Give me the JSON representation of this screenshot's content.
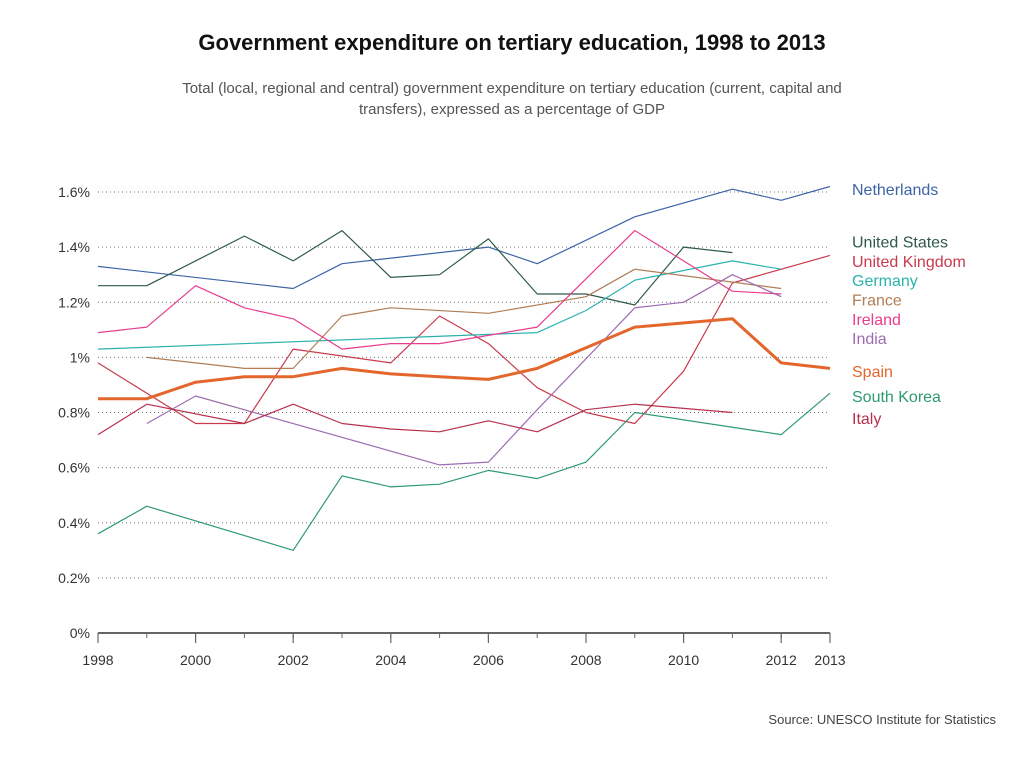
{
  "title": "Government expenditure on tertiary education, 1998 to 2013",
  "subtitle": "Total (local, regional and central) government expenditure on tertiary education (current, capital and transfers), expressed as a percentage of GDP",
  "source": "Source: UNESCO Institute for Statistics",
  "chart_data": {
    "type": "line",
    "title": "Government expenditure on tertiary education, 1998 to 2013",
    "xlabel": "",
    "ylabel": "",
    "xlim": [
      1998,
      2013
    ],
    "ylim": [
      0,
      1.6
    ],
    "x_ticks": [
      {
        "value": 1998,
        "label": "1998"
      },
      {
        "value": 2000,
        "label": "2000"
      },
      {
        "value": 2002,
        "label": "2002"
      },
      {
        "value": 2004,
        "label": "2004"
      },
      {
        "value": 2006,
        "label": "2006"
      },
      {
        "value": 2008,
        "label": "2008"
      },
      {
        "value": 2010,
        "label": "2010"
      },
      {
        "value": 2012,
        "label": "2012"
      },
      {
        "value": 2013,
        "label": "2013"
      }
    ],
    "y_ticks": [
      {
        "value": 0,
        "label": "0%"
      },
      {
        "value": 0.2,
        "label": "0.2%"
      },
      {
        "value": 0.4,
        "label": "0.4%"
      },
      {
        "value": 0.6,
        "label": "0.6%"
      },
      {
        "value": 0.8,
        "label": "0.8%"
      },
      {
        "value": 1.0,
        "label": "1%"
      },
      {
        "value": 1.2,
        "label": "1.2%"
      },
      {
        "value": 1.4,
        "label": "1.4%"
      },
      {
        "value": 1.6,
        "label": "1.6%"
      }
    ],
    "grid": "horizontal dotted",
    "legend_position": "right, labels at line ends",
    "series": [
      {
        "name": "Netherlands",
        "color": "#3c64a6",
        "width": 1.2,
        "legend_y": 1.61,
        "points": [
          [
            1998,
            1.33
          ],
          [
            2002,
            1.25
          ],
          [
            2003,
            1.34
          ],
          [
            2006,
            1.4
          ],
          [
            2007,
            1.34
          ],
          [
            2009,
            1.51
          ],
          [
            2011,
            1.61
          ],
          [
            2012,
            1.57
          ],
          [
            2013,
            1.62
          ]
        ]
      },
      {
        "name": "United States",
        "color": "#2f5a48",
        "width": 1.2,
        "legend_y": 1.42,
        "points": [
          [
            1998,
            1.26
          ],
          [
            1999,
            1.26
          ],
          [
            2001,
            1.44
          ],
          [
            2002,
            1.35
          ],
          [
            2003,
            1.46
          ],
          [
            2004,
            1.29
          ],
          [
            2005,
            1.3
          ],
          [
            2006,
            1.43
          ],
          [
            2007,
            1.23
          ],
          [
            2008,
            1.23
          ],
          [
            2009,
            1.19
          ],
          [
            2010,
            1.4
          ],
          [
            2011,
            1.38
          ]
        ]
      },
      {
        "name": "United Kingdom",
        "color": "#c93a4c",
        "width": 1.2,
        "legend_y": 1.35,
        "points": [
          [
            1998,
            0.98
          ],
          [
            2000,
            0.76
          ],
          [
            2001,
            0.76
          ],
          [
            2002,
            1.03
          ],
          [
            2004,
            0.98
          ],
          [
            2005,
            1.15
          ],
          [
            2006,
            1.05
          ],
          [
            2007,
            0.89
          ],
          [
            2008,
            0.8
          ],
          [
            2009,
            0.76
          ],
          [
            2010,
            0.95
          ],
          [
            2011,
            1.27
          ],
          [
            2013,
            1.37
          ]
        ]
      },
      {
        "name": "Germany",
        "color": "#2bb2ad",
        "width": 1.2,
        "legend_y": 1.28,
        "points": [
          [
            1998,
            1.03
          ],
          [
            2007,
            1.09
          ],
          [
            2008,
            1.17
          ],
          [
            2009,
            1.28
          ],
          [
            2011,
            1.35
          ],
          [
            2012,
            1.32
          ]
        ]
      },
      {
        "name": "France",
        "color": "#b07e56",
        "width": 1.2,
        "legend_y": 1.21,
        "points": [
          [
            1999,
            1.0
          ],
          [
            2001,
            0.96
          ],
          [
            2002,
            0.96
          ],
          [
            2003,
            1.15
          ],
          [
            2004,
            1.18
          ],
          [
            2006,
            1.16
          ],
          [
            2008,
            1.22
          ],
          [
            2009,
            1.32
          ],
          [
            2012,
            1.25
          ]
        ]
      },
      {
        "name": "Ireland",
        "color": "#e83c8e",
        "width": 1.2,
        "legend_y": 1.14,
        "points": [
          [
            1998,
            1.09
          ],
          [
            1999,
            1.11
          ],
          [
            2000,
            1.26
          ],
          [
            2001,
            1.18
          ],
          [
            2002,
            1.14
          ],
          [
            2003,
            1.03
          ],
          [
            2004,
            1.05
          ],
          [
            2005,
            1.05
          ],
          [
            2007,
            1.11
          ],
          [
            2009,
            1.46
          ],
          [
            2011,
            1.24
          ],
          [
            2012,
            1.23
          ]
        ]
      },
      {
        "name": "India",
        "color": "#9d6cb0",
        "width": 1.2,
        "legend_y": 1.07,
        "points": [
          [
            1999,
            0.76
          ],
          [
            2000,
            0.86
          ],
          [
            2005,
            0.61
          ],
          [
            2006,
            0.62
          ],
          [
            2007,
            0.81
          ],
          [
            2009,
            1.18
          ],
          [
            2010,
            1.2
          ],
          [
            2011,
            1.3
          ],
          [
            2012,
            1.22
          ]
        ]
      },
      {
        "name": "Spain",
        "color": "#e3672d",
        "width": 3,
        "legend_y": 0.95,
        "points": [
          [
            1998,
            0.85
          ],
          [
            1999,
            0.85
          ],
          [
            2000,
            0.91
          ],
          [
            2001,
            0.93
          ],
          [
            2002,
            0.93
          ],
          [
            2003,
            0.96
          ],
          [
            2004,
            0.94
          ],
          [
            2005,
            0.93
          ],
          [
            2006,
            0.92
          ],
          [
            2007,
            0.96
          ],
          [
            2009,
            1.11
          ],
          [
            2011,
            1.14
          ],
          [
            2012,
            0.98
          ],
          [
            2013,
            0.96
          ]
        ]
      },
      {
        "name": "South Korea",
        "color": "#2d9b6f",
        "width": 1.2,
        "legend_y": 0.86,
        "points": [
          [
            1998,
            0.36
          ],
          [
            1999,
            0.46
          ],
          [
            2002,
            0.3
          ],
          [
            2003,
            0.57
          ],
          [
            2004,
            0.53
          ],
          [
            2005,
            0.54
          ],
          [
            2006,
            0.59
          ],
          [
            2007,
            0.56
          ],
          [
            2008,
            0.62
          ],
          [
            2009,
            0.8
          ],
          [
            2012,
            0.72
          ],
          [
            2013,
            0.87
          ]
        ]
      },
      {
        "name": "Italy",
        "color": "#b7304d",
        "width": 1.2,
        "legend_y": 0.78,
        "points": [
          [
            1998,
            0.72
          ],
          [
            1999,
            0.83
          ],
          [
            2001,
            0.76
          ],
          [
            2002,
            0.83
          ],
          [
            2003,
            0.76
          ],
          [
            2004,
            0.74
          ],
          [
            2005,
            0.73
          ],
          [
            2006,
            0.77
          ],
          [
            2007,
            0.73
          ],
          [
            2008,
            0.81
          ],
          [
            2009,
            0.83
          ],
          [
            2011,
            0.8
          ]
        ]
      }
    ]
  }
}
